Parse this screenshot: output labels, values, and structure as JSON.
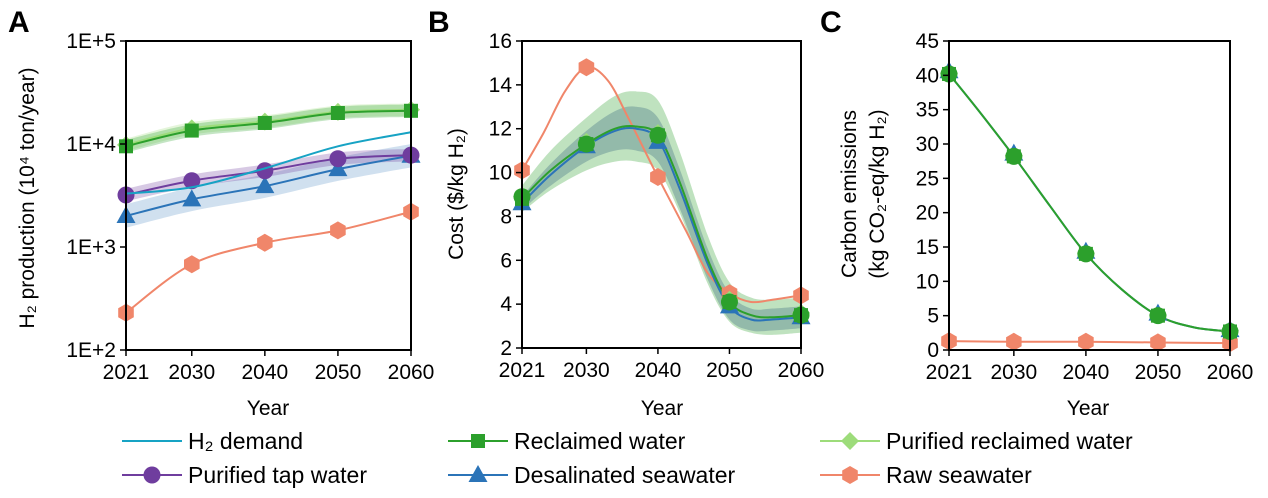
{
  "colors": {
    "demand": "#17a3c4",
    "reclaimed": "#2ca02c",
    "purified_reclaimed": "#9ddc7a",
    "purified_tap": "#6f3d9e",
    "desalinated": "#2b74b8",
    "raw": "#f0866a"
  },
  "legend": [
    {
      "label": "H₂ demand",
      "color": "#17a3c4",
      "marker": "none"
    },
    {
      "label": "Reclaimed water",
      "color": "#2ca02c",
      "marker": "square"
    },
    {
      "label": "Purified reclaimed water",
      "color": "#9ddc7a",
      "marker": "diamond"
    },
    {
      "label": "Purified tap water",
      "color": "#6f3d9e",
      "marker": "circle"
    },
    {
      "label": "Desalinated seawater",
      "color": "#2b74b8",
      "marker": "triangle"
    },
    {
      "label": "Raw seawater",
      "color": "#f0866a",
      "marker": "hexagon"
    }
  ],
  "chart_data": [
    {
      "panel": "A",
      "type": "line",
      "scale_y": "log",
      "xlabel": "Year",
      "ylabel": "H₂ production (10⁴ ton/year)",
      "xlim": [
        2021,
        2060
      ],
      "ylim": [
        100,
        100000
      ],
      "xticks": [
        2021,
        2030,
        2040,
        2050,
        2060
      ],
      "yticks": [
        100,
        1000,
        10000,
        100000
      ],
      "ytick_labels": [
        "1E+2",
        "1E+3",
        "1E+4",
        "1E+5"
      ],
      "x": [
        2021,
        2030,
        2040,
        2050,
        2060
      ],
      "series": [
        {
          "name": "H₂ demand",
          "key": "demand",
          "marker": "none",
          "values": [
            3300,
            3800,
            5800,
            9500,
            13000
          ]
        },
        {
          "name": "Reclaimed water",
          "key": "reclaimed",
          "marker": "square",
          "values": [
            9500,
            13500,
            16000,
            20000,
            21000
          ],
          "band": 0.15
        },
        {
          "name": "Purified reclaimed water",
          "key": "purified_reclaimed",
          "marker": "diamond",
          "values": [
            9800,
            14200,
            16500,
            20500,
            21500
          ],
          "band": 0.15
        },
        {
          "name": "Purified tap water",
          "key": "purified_tap",
          "marker": "circle",
          "values": [
            3200,
            4400,
            5500,
            7200,
            7800
          ],
          "band": 0.15
        },
        {
          "name": "Desalinated seawater",
          "key": "desalinated",
          "marker": "triangle",
          "values": [
            2000,
            2900,
            3900,
            5700,
            7700
          ],
          "band": 0.3
        },
        {
          "name": "Raw seawater",
          "key": "raw",
          "marker": "hexagon",
          "values": [
            230,
            680,
            1100,
            1450,
            2200
          ]
        }
      ]
    },
    {
      "panel": "B",
      "type": "line",
      "xlabel": "Year",
      "ylabel": "Cost ($/kg H₂)",
      "xlim": [
        2021,
        2060
      ],
      "ylim": [
        2,
        16
      ],
      "xticks": [
        2021,
        2030,
        2040,
        2050,
        2060
      ],
      "yticks": [
        2,
        4,
        6,
        8,
        10,
        12,
        14,
        16
      ],
      "series": [
        {
          "name": "Reclaimed water",
          "key": "reclaimed",
          "marker": "square",
          "x": [
            2021,
            2030,
            2040,
            2050,
            2060
          ],
          "values": [
            8.8,
            11.3,
            11.7,
            4.1,
            3.5
          ],
          "curve_x": [
            2021,
            2025,
            2030,
            2034,
            2037,
            2040,
            2043,
            2047,
            2050,
            2053,
            2056,
            2060
          ],
          "curve_y": [
            8.8,
            10.1,
            11.3,
            12.0,
            12.1,
            11.7,
            9.6,
            6.0,
            4.1,
            3.5,
            3.4,
            3.5
          ],
          "band": [
            0.6,
            0.9,
            1.2,
            1.5,
            1.6,
            1.6,
            1.4,
            1.1,
            0.9,
            0.8,
            0.8,
            0.8
          ]
        },
        {
          "name": "Purified reclaimed water",
          "key": "purified_reclaimed",
          "marker": "diamond",
          "x": [
            2021,
            2030,
            2040,
            2050,
            2060
          ],
          "values": [
            8.9,
            11.4,
            11.8,
            4.2,
            3.6
          ]
        },
        {
          "name": "Purified tap water",
          "key": "purified_tap",
          "marker": "circle",
          "x": [
            2021,
            2030,
            2040,
            2050,
            2060
          ],
          "values": [
            8.9,
            11.3,
            11.7,
            4.1,
            3.5
          ]
        },
        {
          "name": "Desalinated seawater",
          "key": "desalinated",
          "marker": "triangle",
          "x": [
            2021,
            2030,
            2040,
            2050,
            2060
          ],
          "values": [
            8.6,
            11.2,
            11.4,
            3.9,
            3.4
          ],
          "curve_x": [
            2021,
            2025,
            2030,
            2034,
            2037,
            2040,
            2043,
            2047,
            2050,
            2053,
            2056,
            2060
          ],
          "curve_y": [
            8.6,
            9.9,
            11.2,
            11.9,
            12.0,
            11.5,
            9.3,
            5.8,
            3.9,
            3.3,
            3.3,
            3.4
          ],
          "band": [
            0.3,
            0.5,
            0.7,
            0.9,
            1.0,
            1.0,
            0.9,
            0.7,
            0.6,
            0.5,
            0.5,
            0.5
          ]
        },
        {
          "name": "Raw seawater",
          "key": "raw",
          "marker": "hexagon",
          "x": [
            2021,
            2030,
            2040,
            2050,
            2060
          ],
          "values": [
            10.1,
            14.8,
            9.8,
            4.5,
            4.4
          ],
          "curve_x": [
            2021,
            2024,
            2027,
            2030,
            2033,
            2036,
            2040,
            2044,
            2047,
            2050,
            2053,
            2056,
            2060
          ],
          "curve_y": [
            10.1,
            11.8,
            13.7,
            14.8,
            14.2,
            12.4,
            9.8,
            7.3,
            5.4,
            4.5,
            4.1,
            4.2,
            4.4
          ]
        }
      ]
    },
    {
      "panel": "C",
      "type": "line",
      "xlabel": "Year",
      "ylabel": "Carbon emissions",
      "ylabel2": "(kg CO₂-eq/kg H₂)",
      "xlim": [
        2021,
        2060
      ],
      "ylim": [
        0,
        45
      ],
      "xticks": [
        2021,
        2030,
        2040,
        2050,
        2060
      ],
      "yticks": [
        0,
        5,
        10,
        15,
        20,
        25,
        30,
        35,
        40,
        45
      ],
      "series": [
        {
          "name": "Reclaimed water",
          "key": "reclaimed",
          "marker": "square",
          "x": [
            2021,
            2030,
            2040,
            2050,
            2060
          ],
          "values": [
            40.2,
            28.2,
            14.0,
            5.0,
            2.7
          ],
          "curve_x": [
            2021,
            2025,
            2030,
            2035,
            2040,
            2045,
            2050,
            2055,
            2060
          ],
          "curve_y": [
            40.2,
            35.0,
            28.2,
            21.0,
            14.0,
            8.8,
            5.0,
            3.3,
            2.7
          ]
        },
        {
          "name": "Purified reclaimed water",
          "key": "purified_reclaimed",
          "marker": "diamond",
          "x": [
            2021,
            2030,
            2040,
            2050,
            2060
          ],
          "values": [
            40.3,
            28.3,
            14.1,
            5.1,
            2.8
          ]
        },
        {
          "name": "Purified tap water",
          "key": "purified_tap",
          "marker": "circle",
          "x": [
            2021,
            2030,
            2040,
            2050,
            2060
          ],
          "values": [
            40.2,
            28.2,
            14.0,
            5.0,
            2.7
          ]
        },
        {
          "name": "Desalinated seawater",
          "key": "desalinated",
          "marker": "triangle",
          "x": [
            2021,
            2030,
            2040,
            2050,
            2060
          ],
          "values": [
            40.6,
            28.6,
            14.3,
            5.3,
            2.9
          ]
        },
        {
          "name": "Raw seawater",
          "key": "raw",
          "marker": "hexagon",
          "x": [
            2021,
            2030,
            2040,
            2050,
            2060
          ],
          "values": [
            1.3,
            1.2,
            1.2,
            1.1,
            1.0
          ]
        }
      ]
    }
  ]
}
